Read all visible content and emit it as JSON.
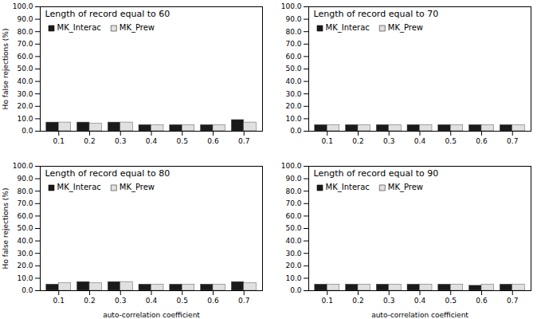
{
  "chart_data": [
    {
      "type": "bar",
      "title": "Length of record equal to 60",
      "categories": [
        "0.1",
        "0.2",
        "0.3",
        "0.4",
        "0.5",
        "0.6",
        "0.7"
      ],
      "series": [
        {
          "name": "MK_Interac",
          "color": "#1a1a1a",
          "values": [
            7.0,
            7.0,
            7.0,
            5.0,
            5.0,
            5.0,
            9.0
          ]
        },
        {
          "name": "MK_Prew",
          "color": "#e0e0e0",
          "values": [
            7.0,
            6.0,
            7.0,
            5.0,
            5.0,
            5.0,
            7.0
          ]
        }
      ],
      "ylim": [
        0,
        100
      ],
      "yticks": [
        {
          "value": 0,
          "label": "0.0"
        },
        {
          "value": 10,
          "label": "10.0"
        },
        {
          "value": 20,
          "label": "20.0"
        },
        {
          "value": 30,
          "label": "30.0"
        },
        {
          "value": 40,
          "label": "40.0"
        },
        {
          "value": 50,
          "label": "50.0"
        },
        {
          "value": 60,
          "label": "60.0"
        },
        {
          "value": 70,
          "label": "70.0"
        },
        {
          "value": 80,
          "label": "80.0"
        },
        {
          "value": 90,
          "label": "90.0"
        },
        {
          "value": 100,
          "label": "100.0"
        }
      ],
      "ylabel": "Ho false rejections (%)",
      "legend": "upper left",
      "grid": false
    },
    {
      "type": "bar",
      "title": "Length of record equal to 70",
      "categories": [
        "0.1",
        "0.2",
        "0.3",
        "0.4",
        "0.5",
        "0.6",
        "0.7"
      ],
      "series": [
        {
          "name": "MK_Interac",
          "color": "#1a1a1a",
          "values": [
            5.0,
            5.0,
            5.0,
            5.0,
            5.0,
            5.0,
            5.0
          ]
        },
        {
          "name": "MK_Prew",
          "color": "#e0e0e0",
          "values": [
            5.0,
            5.0,
            5.0,
            5.0,
            5.0,
            5.0,
            5.0
          ]
        }
      ],
      "ylim": [
        0,
        100
      ],
      "yticks": [
        {
          "value": 0,
          "label": "0.0"
        },
        {
          "value": 10,
          "label": "10.0"
        },
        {
          "value": 20,
          "label": "20.0"
        },
        {
          "value": 30,
          "label": "30.0"
        },
        {
          "value": 40,
          "label": "40.0"
        },
        {
          "value": 50,
          "label": "50.0"
        },
        {
          "value": 60,
          "label": "60.0"
        },
        {
          "value": 70,
          "label": "70.0"
        },
        {
          "value": 80,
          "label": "80.0"
        },
        {
          "value": 90,
          "label": "90.0"
        },
        {
          "value": 100,
          "label": "100.0"
        }
      ],
      "legend": "upper left",
      "grid": false
    },
    {
      "type": "bar",
      "title": "Length of record equal to 80",
      "categories": [
        "0.1",
        "0.2",
        "0.3",
        "0.4",
        "0.5",
        "0.6",
        "0.7"
      ],
      "series": [
        {
          "name": "MK_Interac",
          "color": "#1a1a1a",
          "values": [
            5.0,
            7.0,
            7.0,
            5.0,
            5.0,
            5.0,
            7.0
          ]
        },
        {
          "name": "MK_Prew",
          "color": "#e0e0e0",
          "values": [
            6.0,
            6.0,
            7.0,
            5.0,
            5.0,
            5.0,
            6.0
          ]
        }
      ],
      "ylim": [
        0,
        100
      ],
      "yticks": [
        {
          "value": 0,
          "label": "0.0"
        },
        {
          "value": 10,
          "label": "10.0"
        },
        {
          "value": 20,
          "label": "20.0"
        },
        {
          "value": 30,
          "label": "30.0"
        },
        {
          "value": 40,
          "label": "40.0"
        },
        {
          "value": 50,
          "label": "50.0"
        },
        {
          "value": 60,
          "label": "60.0"
        },
        {
          "value": 70,
          "label": "70.0"
        },
        {
          "value": 80,
          "label": "80.0"
        },
        {
          "value": 90,
          "label": "90.0"
        },
        {
          "value": 100,
          "label": "100.0"
        }
      ],
      "ylabel": "Ho false rejections (%)",
      "xlabel": "auto-correlation coefficient",
      "legend": "upper left",
      "grid": false
    },
    {
      "type": "bar",
      "title": "Length of record equal to 90",
      "categories": [
        "0.1",
        "0.2",
        "0.3",
        "0.4",
        "0.5",
        "0.6",
        "0.7"
      ],
      "series": [
        {
          "name": "MK_Interac",
          "color": "#1a1a1a",
          "values": [
            5.0,
            5.0,
            5.0,
            5.0,
            5.0,
            4.0,
            5.0
          ]
        },
        {
          "name": "MK_Prew",
          "color": "#e0e0e0",
          "values": [
            5.0,
            5.0,
            5.0,
            5.0,
            5.0,
            5.0,
            5.0
          ]
        }
      ],
      "ylim": [
        0,
        100
      ],
      "yticks": [
        {
          "value": 0,
          "label": "0.0"
        },
        {
          "value": 10,
          "label": "10.0"
        },
        {
          "value": 20,
          "label": "20.0"
        },
        {
          "value": 30,
          "label": "30.0"
        },
        {
          "value": 40,
          "label": "40.0"
        },
        {
          "value": 50,
          "label": "50.0"
        },
        {
          "value": 60,
          "label": "60.0"
        },
        {
          "value": 70,
          "label": "70.0"
        },
        {
          "value": 80,
          "label": "80.0"
        },
        {
          "value": 90,
          "label": "90.0"
        },
        {
          "value": 100,
          "label": "100.0"
        }
      ],
      "xlabel": "auto-correlation coefficient",
      "legend": "upper left",
      "grid": false
    }
  ]
}
